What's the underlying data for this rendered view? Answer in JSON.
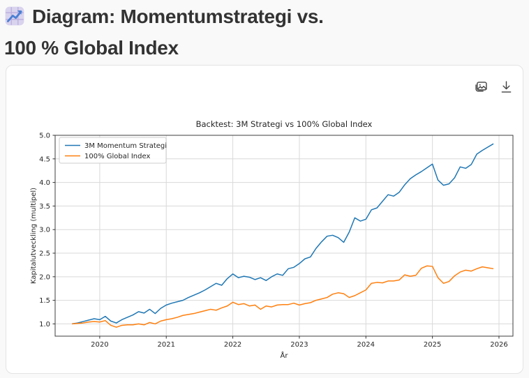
{
  "header": {
    "emoji_icon": "chart-increasing",
    "title_line1": "Diagram: Momentumstrategi vs.",
    "title_line2": "100 % Global Index"
  },
  "toolbar": {
    "icons": [
      "image-icon",
      "download-icon"
    ]
  },
  "chart_data": {
    "type": "line",
    "title": "Backtest: 3M Strategi vs 100% Global Index",
    "xlabel": "År",
    "ylabel": "Kapitalutveckling (multipel)",
    "xlim": [
      2019.33,
      2026.21
    ],
    "ylim": [
      0.74,
      5.0
    ],
    "x_ticks": [
      2020,
      2021,
      2022,
      2023,
      2024,
      2025,
      2026
    ],
    "y_ticks": [
      1.0,
      1.5,
      2.0,
      2.5,
      3.0,
      3.5,
      4.0,
      4.5,
      5.0
    ],
    "grid": true,
    "legend_position": "upper left",
    "x_start": 2019.5833,
    "x_step": 0.0833333,
    "x_unit": "decimal_year_monthly",
    "colors": {
      "grid": "#d9d9d9",
      "spine": "#3c3c3c",
      "tick": "#333333",
      "text": "#262626"
    },
    "series": [
      {
        "name": "3M Momentum Strategi",
        "color": "#1f77b4",
        "values": [
          1.0,
          1.02,
          1.05,
          1.08,
          1.11,
          1.09,
          1.16,
          1.06,
          1.02,
          1.09,
          1.14,
          1.19,
          1.26,
          1.23,
          1.31,
          1.22,
          1.33,
          1.4,
          1.44,
          1.47,
          1.5,
          1.56,
          1.61,
          1.66,
          1.72,
          1.79,
          1.86,
          1.82,
          1.96,
          2.06,
          1.98,
          2.01,
          1.99,
          1.94,
          1.98,
          1.92,
          2.0,
          2.06,
          2.03,
          2.17,
          2.2,
          2.28,
          2.38,
          2.42,
          2.6,
          2.74,
          2.86,
          2.88,
          2.83,
          2.73,
          2.95,
          3.25,
          3.18,
          3.22,
          3.42,
          3.46,
          3.6,
          3.74,
          3.71,
          3.79,
          3.95,
          4.08,
          4.16,
          4.23,
          4.31,
          4.39,
          4.05,
          3.94,
          3.97,
          4.1,
          4.33,
          4.3,
          4.38,
          4.6,
          4.68,
          4.75,
          4.82
        ]
      },
      {
        "name": "100% Global Index",
        "color": "#ff7f0e",
        "values": [
          1.0,
          1.01,
          1.02,
          1.04,
          1.05,
          1.04,
          1.07,
          0.97,
          0.93,
          0.97,
          0.98,
          0.98,
          1.0,
          0.98,
          1.03,
          1.0,
          1.06,
          1.09,
          1.11,
          1.14,
          1.18,
          1.2,
          1.22,
          1.25,
          1.28,
          1.31,
          1.29,
          1.34,
          1.38,
          1.46,
          1.41,
          1.43,
          1.38,
          1.4,
          1.31,
          1.38,
          1.36,
          1.4,
          1.41,
          1.41,
          1.44,
          1.4,
          1.43,
          1.45,
          1.5,
          1.53,
          1.56,
          1.63,
          1.66,
          1.64,
          1.56,
          1.6,
          1.66,
          1.72,
          1.86,
          1.88,
          1.87,
          1.91,
          1.91,
          1.93,
          2.04,
          2.01,
          2.03,
          2.18,
          2.23,
          2.22,
          1.98,
          1.86,
          1.9,
          2.02,
          2.1,
          2.14,
          2.12,
          2.17,
          2.21,
          2.19,
          2.17
        ]
      }
    ]
  }
}
